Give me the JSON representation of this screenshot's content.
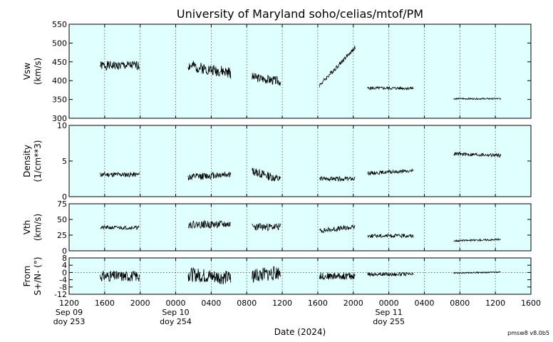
{
  "chart_data": {
    "type": "line",
    "title": "University of Maryland  soho/celias/mtof/PM",
    "xlabel": "Date (2024)",
    "footnote": "pmsw8 v8.0b5",
    "x_hours_range": [
      12,
      64
    ],
    "x_ticks": [
      {
        "h": 12,
        "labels": [
          "1200",
          "Sep 09",
          "doy 253"
        ]
      },
      {
        "h": 16,
        "labels": [
          "1600"
        ]
      },
      {
        "h": 20,
        "labels": [
          "2000"
        ]
      },
      {
        "h": 24,
        "labels": [
          "0000",
          "Sep 10",
          "doy 254"
        ]
      },
      {
        "h": 28,
        "labels": [
          "0400"
        ]
      },
      {
        "h": 32,
        "labels": [
          "0800"
        ]
      },
      {
        "h": 36,
        "labels": [
          "1200"
        ]
      },
      {
        "h": 40,
        "labels": [
          "1600"
        ]
      },
      {
        "h": 44,
        "labels": [
          "2000"
        ]
      },
      {
        "h": 48,
        "labels": [
          "0000",
          "Sep 11",
          "doy 255"
        ]
      },
      {
        "h": 52,
        "labels": [
          "0400"
        ]
      },
      {
        "h": 56,
        "labels": [
          "0800"
        ]
      },
      {
        "h": 60,
        "labels": [
          "1200"
        ]
      },
      {
        "h": 64,
        "labels": [
          "1600"
        ]
      }
    ],
    "panels": [
      {
        "ylabel": [
          "Vsw",
          "(km/s)"
        ],
        "ylim": [
          300,
          550
        ],
        "yticks": [
          300,
          350,
          400,
          450,
          500,
          550
        ],
        "zero_line": false,
        "segments": [
          {
            "start": 15.5,
            "end": 19.9,
            "base": 440,
            "amp": 12,
            "trend": 0,
            "seed": 1
          },
          {
            "start": 25.4,
            "end": 30.2,
            "base": 440,
            "amp": 15,
            "trend": -20,
            "seed": 2
          },
          {
            "start": 32.6,
            "end": 35.8,
            "base": 410,
            "amp": 12,
            "trend": -12,
            "seed": 3
          },
          {
            "start": 40.2,
            "end": 44.2,
            "base": 388,
            "amp": 6,
            "trend": 100,
            "seed": 4
          },
          {
            "start": 45.6,
            "end": 50.8,
            "base": 380,
            "amp": 4,
            "trend": 0,
            "seed": 5
          },
          {
            "start": 55.3,
            "end": 60.6,
            "base": 352,
            "amp": 2,
            "trend": 0,
            "seed": 6
          }
        ]
      },
      {
        "ylabel": [
          "Density",
          "(1/cm**3)"
        ],
        "ylim": [
          0,
          10
        ],
        "yticks": [
          0,
          5,
          10
        ],
        "zero_line": false,
        "segments": [
          {
            "start": 15.5,
            "end": 19.9,
            "base": 3.1,
            "amp": 0.35,
            "trend": 0,
            "seed": 11
          },
          {
            "start": 25.4,
            "end": 30.2,
            "base": 2.7,
            "amp": 0.5,
            "trend": 0.5,
            "seed": 12
          },
          {
            "start": 32.6,
            "end": 35.8,
            "base": 3.6,
            "amp": 0.6,
            "trend": -1.2,
            "seed": 13
          },
          {
            "start": 40.2,
            "end": 44.2,
            "base": 2.5,
            "amp": 0.3,
            "trend": 0,
            "seed": 14
          },
          {
            "start": 45.6,
            "end": 50.8,
            "base": 3.3,
            "amp": 0.25,
            "trend": 0.3,
            "seed": 15
          },
          {
            "start": 55.3,
            "end": 60.6,
            "base": 6.0,
            "amp": 0.25,
            "trend": -0.2,
            "seed": 16
          }
        ]
      },
      {
        "ylabel": [
          "Vth",
          "(km/s)"
        ],
        "ylim": [
          0,
          75
        ],
        "yticks": [
          0,
          25,
          50,
          75
        ],
        "zero_line": false,
        "segments": [
          {
            "start": 15.5,
            "end": 19.9,
            "base": 37,
            "amp": 3,
            "trend": 0,
            "seed": 21
          },
          {
            "start": 25.4,
            "end": 30.2,
            "base": 42,
            "amp": 6,
            "trend": 0,
            "seed": 22
          },
          {
            "start": 32.6,
            "end": 35.8,
            "base": 38,
            "amp": 6,
            "trend": 0,
            "seed": 23
          },
          {
            "start": 40.2,
            "end": 44.2,
            "base": 32,
            "amp": 4,
            "trend": 6,
            "seed": 24
          },
          {
            "start": 45.6,
            "end": 50.8,
            "base": 24,
            "amp": 3,
            "trend": 0,
            "seed": 25
          },
          {
            "start": 55.3,
            "end": 60.6,
            "base": 16,
            "amp": 1.5,
            "trend": 2,
            "seed": 26
          }
        ]
      },
      {
        "ylabel": [
          "From",
          "S+/N- (°)"
        ],
        "ylim": [
          -12,
          8
        ],
        "yticks": [
          -12,
          -8,
          -4,
          0,
          4,
          8
        ],
        "zero_line": true,
        "segments": [
          {
            "start": 15.5,
            "end": 19.9,
            "base": -2,
            "amp": 3,
            "trend": 0,
            "seed": 31
          },
          {
            "start": 25.4,
            "end": 30.2,
            "base": -1,
            "amp": 4,
            "trend": -2,
            "seed": 32
          },
          {
            "start": 32.6,
            "end": 35.8,
            "base": -2,
            "amp": 4,
            "trend": 2,
            "seed": 33
          },
          {
            "start": 40.2,
            "end": 44.2,
            "base": -2,
            "amp": 2,
            "trend": 0,
            "seed": 34
          },
          {
            "start": 45.6,
            "end": 50.8,
            "base": -1,
            "amp": 1,
            "trend": 0,
            "seed": 35
          },
          {
            "start": 55.3,
            "end": 60.6,
            "base": -0.3,
            "amp": 0.4,
            "trend": 0.4,
            "seed": 36
          }
        ]
      }
    ]
  }
}
